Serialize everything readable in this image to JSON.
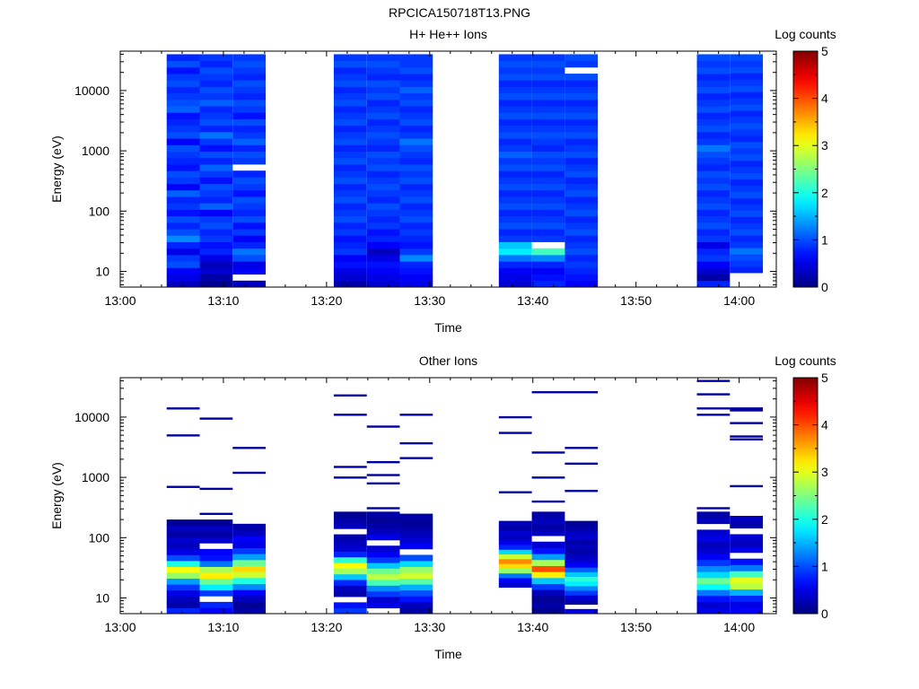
{
  "figure": {
    "title": "RPCICA150718T13.PNG"
  },
  "colors": {
    "axis": "#000000",
    "background": "#ffffff"
  },
  "chart_data": [
    {
      "type": "heatmap",
      "title": "H+ He++ Ions",
      "xlabel": "Time",
      "ylabel": "Energy (eV)",
      "colorbar_label": "Log counts",
      "colorbar_ticks": [
        "0",
        "1",
        "2",
        "3",
        "4",
        "5"
      ],
      "colorbar_range": [
        0,
        5
      ],
      "colormap": "jet",
      "x_ticks": [
        "13:00",
        "13:10",
        "13:20",
        "13:30",
        "13:40",
        "13:50",
        "14:00"
      ],
      "y_ticks": [
        "10",
        "100",
        "1000",
        "10000"
      ],
      "y_scale": "log",
      "xlim": [
        "13:00",
        "14:03.6"
      ],
      "ylim": [
        5.5,
        45000
      ],
      "columns": [
        {
          "start": "13:04.5",
          "end": "13:07.7",
          "emin": 5.5,
          "emax": 40000,
          "levels": [
            0.3,
            0.5,
            0.6,
            1.0,
            0.9,
            0.5,
            0.8,
            1.3,
            1.0,
            0.8,
            1.0,
            0.7,
            0.9,
            0.8,
            1.1,
            0.6,
            0.9,
            1.0,
            0.7,
            0.8,
            0.9,
            1.0,
            0.6,
            1.0,
            0.9,
            0.8,
            0.7,
            1.1,
            1.0,
            0.9,
            0.8,
            1.0,
            0.9,
            0.7,
            1.0,
            0.8
          ]
        },
        {
          "start": "13:07.7",
          "end": "13:10.9",
          "emin": 5.5,
          "emax": 40000,
          "levels": [
            0.1,
            0.2,
            0.4,
            0.3,
            0.5,
            0.8,
            0.7,
            0.9,
            0.8,
            1.0,
            0.9,
            0.6,
            1.1,
            0.8,
            0.9,
            1.0,
            0.7,
            0.9,
            1.1,
            0.8,
            1.0,
            0.7,
            0.9,
            1.2,
            0.8,
            1.0,
            0.9,
            0.8,
            1.1,
            0.9,
            1.0,
            0.8,
            0.9,
            1.0,
            0.8,
            0.9
          ]
        },
        {
          "start": "13:10.9",
          "end": "13:14.1",
          "emin": 5.5,
          "emax": 40000,
          "levels": [
            0.3,
            null,
            0.6,
            0.5,
            1.0,
            1.2,
            0.8,
            0.6,
            0.9,
            0.7,
            1.0,
            0.8,
            0.9,
            1.0,
            0.7,
            0.9,
            1.0,
            0.8,
            null,
            0.9,
            1.0,
            0.8,
            1.1,
            0.9,
            0.8,
            1.0,
            0.7,
            0.9,
            1.0,
            0.8,
            0.9,
            1.0,
            0.8,
            0.9,
            1.0,
            0.9
          ]
        },
        {
          "start": "13:20.7",
          "end": "13:23.9",
          "emin": 5.5,
          "emax": 40000,
          "levels": [
            0.2,
            0.4,
            0.5,
            0.7,
            0.6,
            0.9,
            0.8,
            0.7,
            0.9,
            0.8,
            1.0,
            0.9,
            0.8,
            1.0,
            0.9,
            0.8,
            1.0,
            0.9,
            0.8,
            1.0,
            0.9,
            0.8,
            1.0,
            0.9,
            0.8,
            1.0,
            0.9,
            0.8,
            1.0,
            0.9,
            0.8,
            1.0,
            0.9,
            0.8,
            1.0,
            0.9
          ]
        },
        {
          "start": "13:23.9",
          "end": "13:27.1",
          "emin": 5.5,
          "emax": 40000,
          "levels": [
            0.4,
            0.5,
            0.6,
            0.7,
            0.5,
            0.3,
            0.6,
            0.8,
            0.7,
            0.9,
            0.8,
            0.9,
            1.0,
            0.8,
            0.9,
            1.0,
            0.9,
            0.8,
            1.0,
            0.9,
            1.0,
            0.8,
            0.9,
            1.0,
            0.9,
            0.8,
            1.0,
            0.9,
            0.8,
            1.0,
            0.9,
            1.0,
            0.8,
            0.9,
            1.0,
            0.9
          ]
        },
        {
          "start": "13:27.1",
          "end": "13:30.3",
          "emin": 5.5,
          "emax": 40000,
          "levels": [
            0.5,
            0.6,
            0.7,
            0.8,
            1.3,
            0.9,
            0.7,
            0.8,
            0.9,
            0.8,
            1.0,
            0.9,
            0.8,
            1.0,
            0.9,
            0.8,
            1.0,
            0.9,
            1.0,
            0.8,
            0.9,
            1.0,
            1.2,
            0.9,
            0.8,
            1.0,
            0.9,
            0.8,
            1.0,
            0.9,
            1.1,
            0.9,
            0.8,
            1.0,
            0.9,
            0.9
          ]
        },
        {
          "start": "13:36.7",
          "end": "13:39.9",
          "emin": 5.5,
          "emax": 40000,
          "levels": [
            0.4,
            0.5,
            0.6,
            0.8,
            1.2,
            1.8,
            1.6,
            0.9,
            0.8,
            1.0,
            0.9,
            0.8,
            1.0,
            0.9,
            0.8,
            1.0,
            0.9,
            0.8,
            1.0,
            0.9,
            1.1,
            0.9,
            0.8,
            1.0,
            0.9,
            0.8,
            1.0,
            0.9,
            0.8,
            1.0,
            0.9,
            0.8,
            1.0,
            0.9,
            1.0,
            0.9
          ]
        },
        {
          "start": "13:39.9",
          "end": "13:43.1",
          "emin": 5.5,
          "emax": 40000,
          "levels": [
            0.8,
            0.7,
            0.6,
            0.8,
            1.3,
            2.2,
            null,
            0.9,
            0.8,
            1.0,
            0.9,
            0.8,
            1.0,
            0.9,
            0.8,
            1.0,
            0.9,
            0.8,
            1.0,
            0.9,
            1.0,
            0.8,
            0.9,
            1.0,
            0.9,
            0.8,
            1.0,
            0.9,
            0.8,
            1.0,
            0.9,
            0.8,
            1.0,
            0.9,
            1.0,
            0.9
          ]
        },
        {
          "start": "13:43.1",
          "end": "13:46.3",
          "emin": 5.5,
          "emax": 40000,
          "levels": [
            0.6,
            0.7,
            0.8,
            0.9,
            0.8,
            1.0,
            0.9,
            0.8,
            1.0,
            0.9,
            0.8,
            1.0,
            0.9,
            0.8,
            1.0,
            0.9,
            0.8,
            1.0,
            0.9,
            0.8,
            1.0,
            0.9,
            0.8,
            1.0,
            0.9,
            0.8,
            1.0,
            0.9,
            0.8,
            1.0,
            0.9,
            0.8,
            1.0,
            null,
            0.9,
            1.0
          ]
        },
        {
          "start": "13:55.9",
          "end": "13:59.1",
          "emin": 5.5,
          "emax": 40000,
          "levels": [
            0.8,
            0.2,
            0.4,
            0.6,
            0.9,
            0.8,
            0.5,
            0.9,
            0.8,
            1.0,
            0.9,
            0.8,
            1.0,
            0.9,
            0.8,
            1.0,
            0.9,
            1.0,
            0.8,
            0.9,
            1.0,
            1.2,
            0.9,
            0.8,
            1.0,
            0.9,
            0.8,
            1.0,
            0.9,
            0.8,
            1.0,
            0.9,
            0.8,
            1.0,
            0.9,
            1.0
          ]
        },
        {
          "start": "13:59.1",
          "end": "14:02.3",
          "emin": 9.5,
          "emax": 40000,
          "levels": [
            0.8,
            0.9,
            1.0,
            1.2,
            0.9,
            0.8,
            1.0,
            0.9,
            0.8,
            1.0,
            0.9,
            0.8,
            1.0,
            0.9,
            0.8,
            1.0,
            0.9,
            0.8,
            1.0,
            0.9,
            1.0,
            0.8,
            0.9,
            1.0,
            0.9,
            0.8,
            1.0,
            0.9,
            0.8,
            1.0,
            0.9,
            0.8,
            1.0,
            0.9,
            1.0
          ]
        }
      ]
    },
    {
      "type": "heatmap",
      "title": "Other Ions",
      "xlabel": "Time",
      "ylabel": "Energy (eV)",
      "colorbar_label": "Log counts",
      "colorbar_ticks": [
        "0",
        "1",
        "2",
        "3",
        "4",
        "5"
      ],
      "colorbar_range": [
        0,
        5
      ],
      "colormap": "jet",
      "x_ticks": [
        "13:00",
        "13:10",
        "13:20",
        "13:30",
        "13:40",
        "13:50",
        "14:00"
      ],
      "y_ticks": [
        "10",
        "100",
        "1000",
        "10000"
      ],
      "y_scale": "log",
      "xlim": [
        "13:00",
        "14:03.6"
      ],
      "ylim": [
        5.5,
        45000
      ],
      "columns": [
        {
          "start": "13:04.5",
          "end": "13:07.7",
          "emin": 5.5,
          "emax": 200,
          "levels": [
            0.8,
            0.2,
            0.3,
            0.5,
            0.9,
            1.4,
            2.6,
            3.1,
            2.0,
            1.0,
            0.5,
            0.3,
            0.4,
            0.2,
            0.3,
            0.1
          ],
          "lines": [
            14000,
            5000,
            700
          ]
        },
        {
          "start": "13:07.7",
          "end": "13:10.9",
          "emin": 5.5,
          "emax": 200,
          "levels": [
            0.6,
            0.8,
            null,
            0.9,
            1.8,
            2.4,
            3.2,
            2.7,
            1.2,
            0.7,
            0.6,
            null,
            0.4,
            0.2,
            0.3,
            0.1
          ],
          "lines": [
            9500,
            650,
            250
          ]
        },
        {
          "start": "13:10.9",
          "end": "13:14.1",
          "emin": 5.5,
          "emax": 170,
          "levels": [
            0.2,
            0.1,
            0.3,
            0.6,
            1.3,
            2.0,
            2.9,
            3.3,
            2.4,
            1.4,
            0.9,
            0.5,
            0.6,
            0.3,
            0.2
          ],
          "lines": [
            3100,
            1200
          ]
        },
        {
          "start": "13:20.7",
          "end": "13:23.9",
          "emin": 5.5,
          "emax": 270,
          "levels": [
            0.9,
            0.7,
            null,
            0.2,
            0.3,
            0.8,
            1.6,
            2.7,
            3.1,
            2.1,
            0.8,
            0.4,
            0.3,
            0.2,
            null,
            0.3,
            0.2,
            0.1
          ],
          "lines": [
            23000,
            11000,
            1500,
            1000
          ]
        },
        {
          "start": "13:23.9",
          "end": "13:27.1",
          "emin": 5.5,
          "emax": 270,
          "levels": [
            null,
            0.5,
            0.4,
            0.9,
            1.3,
            2.2,
            2.8,
            2.4,
            1.6,
            0.9,
            0.6,
            0.4,
            null,
            0.5,
            0.3,
            0.2,
            0.1,
            0.2
          ],
          "lines": [
            7000,
            1800,
            1100,
            800,
            310
          ]
        },
        {
          "start": "13:27.1",
          "end": "13:30.3",
          "emin": 5.5,
          "emax": 250,
          "levels": [
            0.2,
            0.3,
            0.7,
            1.0,
            1.5,
            2.3,
            2.9,
            2.6,
            1.7,
            1.0,
            null,
            0.6,
            0.4,
            0.3,
            0.2,
            0.1,
            0.2
          ],
          "lines": [
            11000,
            3700,
            2100
          ]
        },
        {
          "start": "13:36.7",
          "end": "13:39.9",
          "emin": 15,
          "emax": 190,
          "levels": [
            0.4,
            0.6,
            1.2,
            2.6,
            3.3,
            3.7,
            2.9,
            1.7,
            0.8,
            0.5,
            0.3,
            0.4,
            0.2,
            0.3
          ],
          "lines": [
            10000,
            5500,
            570
          ]
        },
        {
          "start": "13:39.9",
          "end": "13:43.1",
          "emin": 5.5,
          "emax": 270,
          "levels": [
            0.1,
            0.2,
            0.1,
            0.3,
            0.9,
            1.6,
            3.2,
            4.0,
            2.7,
            1.4,
            0.7,
            0.4,
            null,
            0.3,
            0.2,
            0.3,
            0.2
          ],
          "lines": [
            26000,
            2600,
            1000,
            400
          ]
        },
        {
          "start": "13:43.1",
          "end": "13:46.3",
          "emin": 5.5,
          "emax": 190,
          "levels": [
            0.5,
            null,
            0.2,
            0.4,
            0.9,
            1.3,
            1.8,
            2.1,
            1.6,
            1.1,
            0.6,
            0.4,
            0.3,
            0.2,
            0.3,
            0.2,
            0.4,
            0.3,
            0.2,
            0.1
          ],
          "lines": [
            26000,
            3100,
            1700,
            600
          ]
        },
        {
          "start": "13:55.9",
          "end": "13:59.1",
          "emin": 5.5,
          "emax": 270,
          "levels": [
            0.5,
            0.4,
            0.7,
            1.2,
            1.9,
            2.4,
            1.7,
            1.3,
            0.9,
            0.6,
            0.4,
            0.3,
            0.5,
            0.4,
            null,
            0.3,
            0.2
          ],
          "lines": [
            40000,
            24000,
            14000,
            11000,
            310
          ]
        },
        {
          "start": "13:59.1",
          "end": "14:02.3",
          "emin": 5.5,
          "emax": 230,
          "levels": [
            0.6,
            0.5,
            0.8,
            1.5,
            2.8,
            3.0,
            2.2,
            1.2,
            0.7,
            null,
            0.5,
            0.3,
            0.4,
            null,
            0.2,
            0.3
          ],
          "lines": [
            14000,
            13000,
            8000,
            4800,
            4300,
            720
          ]
        }
      ]
    }
  ]
}
